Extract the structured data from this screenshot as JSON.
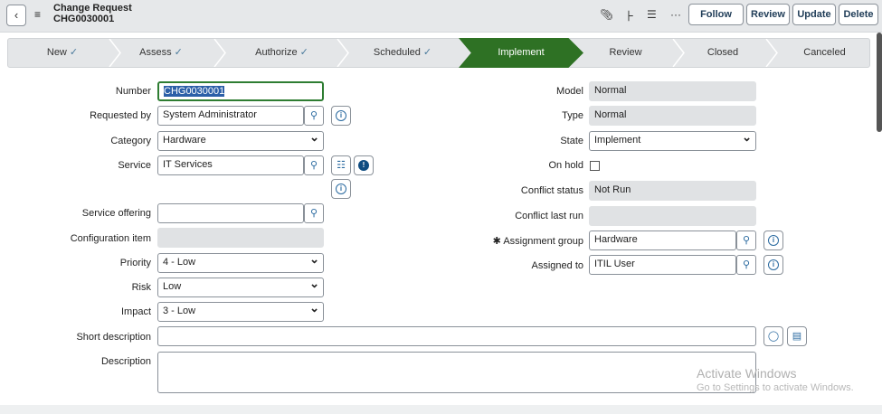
{
  "header": {
    "title": "Change Request",
    "number": "CHG0030001",
    "buttons": {
      "follow": "Follow",
      "review": "Review",
      "update": "Update",
      "delete": "Delete"
    },
    "icons": [
      "paperclip-icon",
      "activity-icon",
      "settings-sliders-icon",
      "more-icon"
    ]
  },
  "stages": [
    {
      "label": "New",
      "done": true
    },
    {
      "label": "Assess",
      "done": true
    },
    {
      "label": "Authorize",
      "done": true
    },
    {
      "label": "Scheduled",
      "done": true
    },
    {
      "label": "Implement",
      "current": true
    },
    {
      "label": "Review"
    },
    {
      "label": "Closed"
    },
    {
      "label": "Canceled"
    }
  ],
  "check": "✓",
  "accent": "#2e7124",
  "left": {
    "number": {
      "label": "Number",
      "value": "CHG0030001"
    },
    "requested_by": {
      "label": "Requested by",
      "value": "System Administrator"
    },
    "category": {
      "label": "Category",
      "value": "Hardware"
    },
    "service": {
      "label": "Service",
      "value": "IT Services"
    },
    "service_offering": {
      "label": "Service offering",
      "value": ""
    },
    "configuration_item": {
      "label": "Configuration item",
      "value": ""
    },
    "priority": {
      "label": "Priority",
      "value": "4 - Low"
    },
    "risk": {
      "label": "Risk",
      "value": "Low"
    },
    "impact": {
      "label": "Impact",
      "value": "3 - Low"
    }
  },
  "right": {
    "model": {
      "label": "Model",
      "value": "Normal"
    },
    "type": {
      "label": "Type",
      "value": "Normal"
    },
    "state": {
      "label": "State",
      "value": "Implement"
    },
    "on_hold": {
      "label": "On hold",
      "checked": false
    },
    "conflict_status": {
      "label": "Conflict status",
      "value": "Not Run"
    },
    "conflict_last_run": {
      "label": "Conflict last run",
      "value": ""
    },
    "assignment_group": {
      "label": "Assignment group",
      "value": "Hardware",
      "required_mark": "✱"
    },
    "assigned_to": {
      "label": "Assigned to",
      "value": "ITIL User"
    }
  },
  "short_description": {
    "label": "Short description",
    "value": ""
  },
  "description": {
    "label": "Description",
    "value": ""
  },
  "watermark": {
    "line1": "Activate Windows",
    "line2": "Go to Settings to activate Windows."
  }
}
